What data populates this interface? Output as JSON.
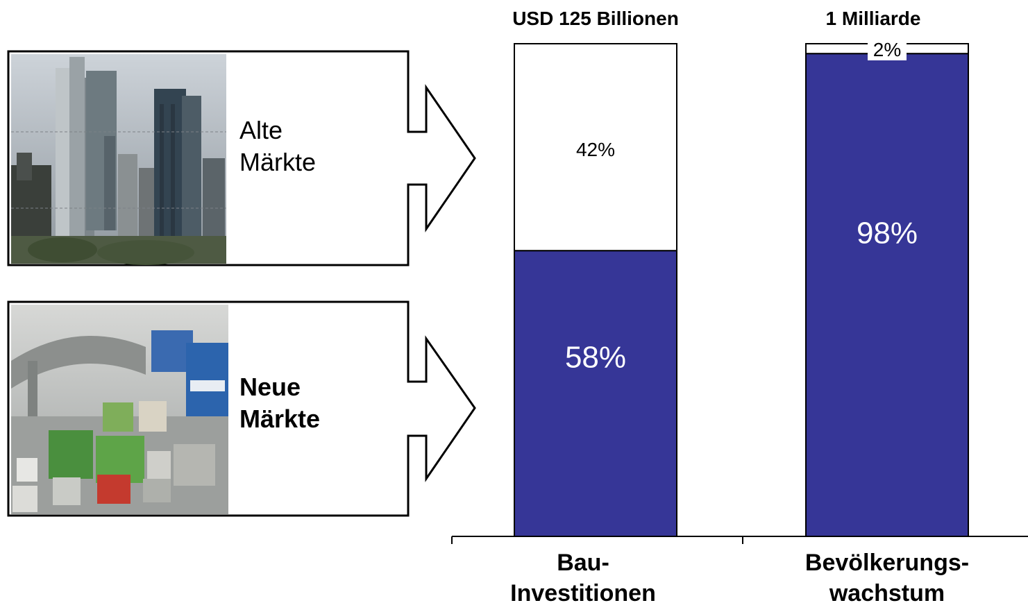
{
  "panels": [
    {
      "photo": "frankfurt-skyline-photo",
      "label_lines": [
        "Alte",
        "Märkte"
      ],
      "bold": false
    },
    {
      "photo": "china-traffic-photo",
      "label_lines": [
        "Neue",
        "Märkte"
      ],
      "bold": true
    }
  ],
  "chart_data": {
    "type": "bar",
    "stacked": true,
    "percent_stacked": true,
    "categories": [
      "Bau-\nInvestitionen",
      "Bevölkerungs-\nwachstum"
    ],
    "category_labels": [
      [
        "Bau-",
        "Investitionen"
      ],
      [
        "Bevölkerungs-",
        "wachstum"
      ]
    ],
    "totals": [
      "USD 125 Billionen",
      "1 Milliarde"
    ],
    "series": [
      {
        "values": [
          58,
          98
        ],
        "labels": [
          "58%",
          "98%"
        ],
        "color": "#363697"
      },
      {
        "values": [
          42,
          2
        ],
        "labels": [
          "42%",
          "2%"
        ],
        "color": "#ffffff"
      }
    ],
    "ylim": [
      0,
      100
    ],
    "grid": false,
    "legend": "none",
    "colors": {
      "bar_fill": "#363697",
      "bar_outline": "#000000",
      "label_on_dark": "#ffffff",
      "label_on_light": "#000000"
    }
  }
}
